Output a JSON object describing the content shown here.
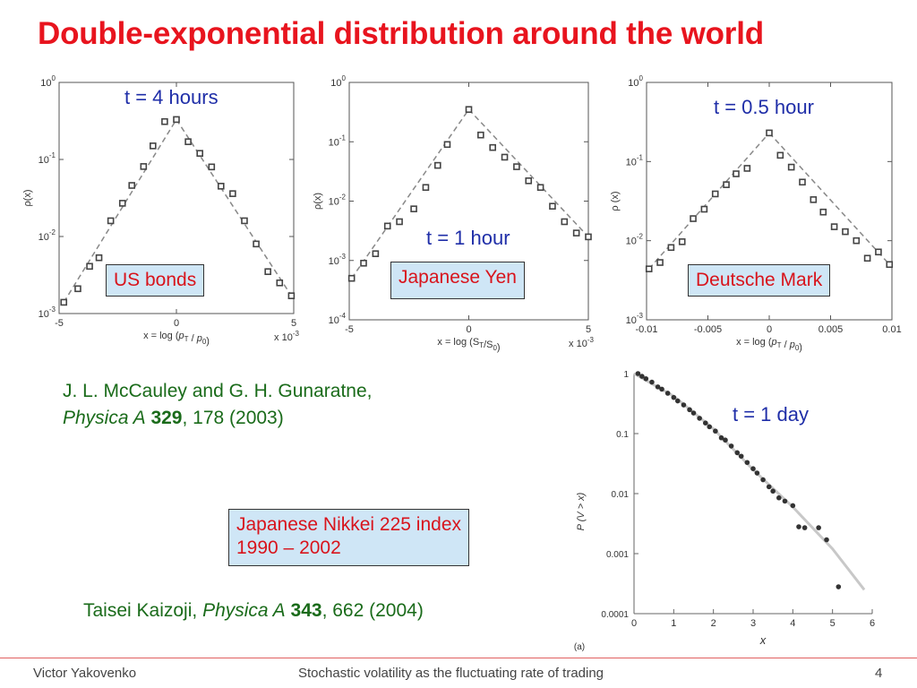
{
  "slide": {
    "title": "Double-exponential distribution around the world",
    "ref1_line1": "J. L. McCauley and G. H. Gunaratne,",
    "ref1_journal": "Physica A",
    "ref1_volume": "329",
    "ref1_rest": ", 178 (2003)",
    "nikkei_line1": "Japanese Nikkei 225 index",
    "nikkei_line2": "1990 – 2002",
    "ref2_author": "Taisei Kaizoji,",
    "ref2_journal": "Physica A",
    "ref2_volume": "343",
    "ref2_rest": ", 662 (2004)",
    "footer_left": "Victor Yakovenko",
    "footer_center": "Stochastic volatility as the fluctuating rate of trading",
    "footer_page": "4",
    "colors": {
      "title": "#e8141e",
      "time_label": "#1f2ea8",
      "reference": "#1a6b1a",
      "box_bg": "#cfe6f6",
      "box_text": "#d8141c"
    }
  },
  "chart_data": [
    {
      "type": "scatter",
      "time_label": "t = 4 hours",
      "box_label": "US bonds",
      "xlabel": "x = log (p_T / p_0)",
      "ylabel": "ρ(x)",
      "xlim": [
        -5,
        5
      ],
      "x_scale": "x 10^-3",
      "ylim": [
        0.001,
        1
      ],
      "y_scale": "log",
      "xticks": [
        "-5",
        "0",
        "5"
      ],
      "yticks": [
        "10^0",
        "10^-1",
        "10^-2",
        "10^-3"
      ],
      "x": [
        -4.8,
        -4.2,
        -3.7,
        -3.3,
        -2.8,
        -2.3,
        -1.9,
        -1.4,
        -1.0,
        -0.5,
        0.0,
        0.5,
        1.0,
        1.5,
        1.9,
        2.4,
        2.9,
        3.4,
        3.9,
        4.4,
        4.9
      ],
      "y": [
        0.0014,
        0.0021,
        0.0041,
        0.0053,
        0.016,
        0.027,
        0.046,
        0.081,
        0.15,
        0.31,
        0.33,
        0.17,
        0.12,
        0.08,
        0.045,
        0.036,
        0.016,
        0.008,
        0.0035,
        0.0025,
        0.0017
      ]
    },
    {
      "type": "scatter",
      "time_label": "t = 1 hour",
      "box_label": "Japanese Yen",
      "xlabel": "x = log (S_T / S_0)",
      "ylabel": "ρ(x)",
      "xlim": [
        -5,
        5
      ],
      "x_scale": "x 10^-3",
      "ylim": [
        0.0001,
        1
      ],
      "y_scale": "log",
      "xticks": [
        "-5",
        "0",
        "5"
      ],
      "yticks": [
        "10^0",
        "10^-1",
        "10^-2",
        "10^-3",
        "10^-4"
      ],
      "x": [
        -4.9,
        -4.4,
        -3.9,
        -3.4,
        -2.9,
        -2.3,
        -1.8,
        -1.3,
        -0.9,
        0.0,
        0.5,
        1.0,
        1.5,
        2.0,
        2.5,
        3.0,
        3.5,
        4.0,
        4.5,
        5.0
      ],
      "y": [
        0.0005,
        0.0009,
        0.0013,
        0.0038,
        0.0045,
        0.0074,
        0.017,
        0.04,
        0.09,
        0.35,
        0.13,
        0.08,
        0.055,
        0.038,
        0.022,
        0.017,
        0.0082,
        0.0045,
        0.0029,
        0.0025
      ]
    },
    {
      "type": "scatter",
      "time_label": "t = 0.5 hour",
      "box_label": "Deutsche Mark",
      "xlabel": "x = log (p_T / p_0)",
      "ylabel": "ρ (x)",
      "xlim": [
        -0.01,
        0.01
      ],
      "ylim": [
        0.001,
        1
      ],
      "y_scale": "log",
      "xticks": [
        "-0.01",
        "-0.005",
        "0",
        "0.005",
        "0.01"
      ],
      "yticks": [
        "10^0",
        "10^-1",
        "10^-2",
        "10^-3"
      ],
      "x": [
        -0.0098,
        -0.0089,
        -0.008,
        -0.0071,
        -0.0062,
        -0.0053,
        -0.0044,
        -0.0035,
        -0.0027,
        -0.0018,
        0.0,
        0.0009,
        0.0018,
        0.0027,
        0.0036,
        0.0044,
        0.0053,
        0.0062,
        0.0071,
        0.008,
        0.0089,
        0.0098
      ],
      "y": [
        0.0044,
        0.0053,
        0.0082,
        0.0097,
        0.019,
        0.025,
        0.039,
        0.051,
        0.07,
        0.082,
        0.23,
        0.12,
        0.085,
        0.055,
        0.033,
        0.023,
        0.015,
        0.013,
        0.01,
        0.006,
        0.0072,
        0.005
      ]
    },
    {
      "type": "scatter",
      "time_label": "t = 1 day",
      "xlabel": "x",
      "ylabel": "P (V > x)",
      "panel_tag": "(a)",
      "xlim": [
        0,
        6
      ],
      "ylim": [
        0.0001,
        1
      ],
      "y_scale": "log",
      "xticks": [
        "0",
        "1",
        "2",
        "3",
        "4",
        "5",
        "6"
      ],
      "yticks": [
        "1",
        "0.1",
        "0.01",
        "0.001",
        "0.0001"
      ],
      "x": [
        0.1,
        0.2,
        0.3,
        0.45,
        0.6,
        0.7,
        0.85,
        1.0,
        1.1,
        1.25,
        1.4,
        1.5,
        1.65,
        1.8,
        1.9,
        2.05,
        2.2,
        2.3,
        2.45,
        2.6,
        2.7,
        2.85,
        3.0,
        3.1,
        3.25,
        3.4,
        3.5,
        3.65,
        3.8,
        4.0,
        4.15,
        4.3,
        4.65,
        4.85,
        5.15
      ],
      "y": [
        1.0,
        0.9,
        0.82,
        0.72,
        0.6,
        0.55,
        0.47,
        0.4,
        0.35,
        0.3,
        0.25,
        0.22,
        0.18,
        0.15,
        0.13,
        0.11,
        0.085,
        0.078,
        0.062,
        0.048,
        0.042,
        0.033,
        0.026,
        0.022,
        0.017,
        0.013,
        0.011,
        0.0085,
        0.0075,
        0.0063,
        0.0028,
        0.0027,
        0.0027,
        0.0017,
        0.00028
      ],
      "fit_curve": {
        "x": [
          0,
          1,
          2,
          3,
          4,
          5,
          5.8
        ],
        "y": [
          1.0,
          0.42,
          0.12,
          0.025,
          0.006,
          0.0012,
          0.00025
        ]
      }
    }
  ]
}
